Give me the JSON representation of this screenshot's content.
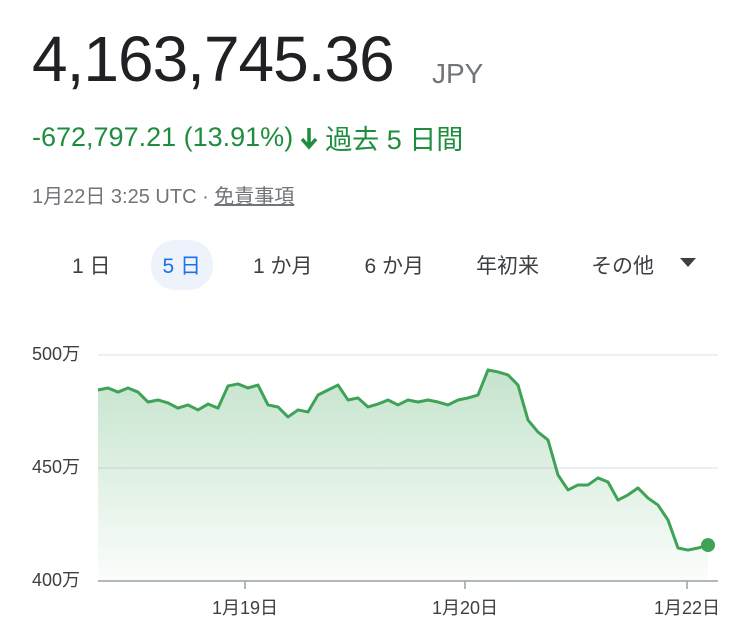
{
  "header": {
    "price": "4,163,745.36",
    "currency": "JPY",
    "change": "-672,797.21 (13.91%)",
    "period": "過去 5 日間",
    "timestamp": "1月22日 3:25 UTC · ",
    "disclaimer": "免責事項"
  },
  "tabs": [
    {
      "label": "1 日"
    },
    {
      "label": "5 日",
      "selected": true
    },
    {
      "label": "1 か月"
    },
    {
      "label": "6 か月"
    },
    {
      "label": "年初来"
    },
    {
      "label": "その他"
    }
  ],
  "chart_data": {
    "type": "area",
    "color": "#3fa357",
    "values": [
      4845000,
      4854000,
      4836000,
      4854000,
      4836000,
      4792000,
      4801000,
      4788000,
      4765000,
      4779000,
      4757000,
      4783000,
      4765000,
      4863000,
      4872000,
      4854000,
      4867000,
      4779000,
      4770000,
      4726000,
      4757000,
      4748000,
      4823000,
      4845000,
      4867000,
      4801000,
      4810000,
      4770000,
      4783000,
      4801000,
      4779000,
      4801000,
      4792000,
      4801000,
      4792000,
      4779000,
      4801000,
      4810000,
      4823000,
      4934000,
      4925000,
      4912000,
      4867000,
      4712000,
      4659000,
      4624000,
      4469000,
      4403000,
      4425000,
      4425000,
      4456000,
      4438000,
      4358000,
      4381000,
      4412000,
      4367000,
      4336000,
      4270000,
      4146000,
      4137000,
      4146000,
      4159000
    ],
    "xlim": [
      0,
      62
    ],
    "xticks": [
      {
        "value": 14.7,
        "label": "1月19日"
      },
      {
        "value": 36.7,
        "label": "1月20日"
      },
      {
        "value": 58.9,
        "label": "1月22日"
      }
    ],
    "ylim": [
      4000000,
      5000000
    ],
    "yticks": [
      {
        "value": 4000000,
        "label": "400万"
      },
      {
        "value": 4500000,
        "label": "450万"
      },
      {
        "value": 5000000,
        "label": "500万"
      }
    ],
    "grid": true
  }
}
